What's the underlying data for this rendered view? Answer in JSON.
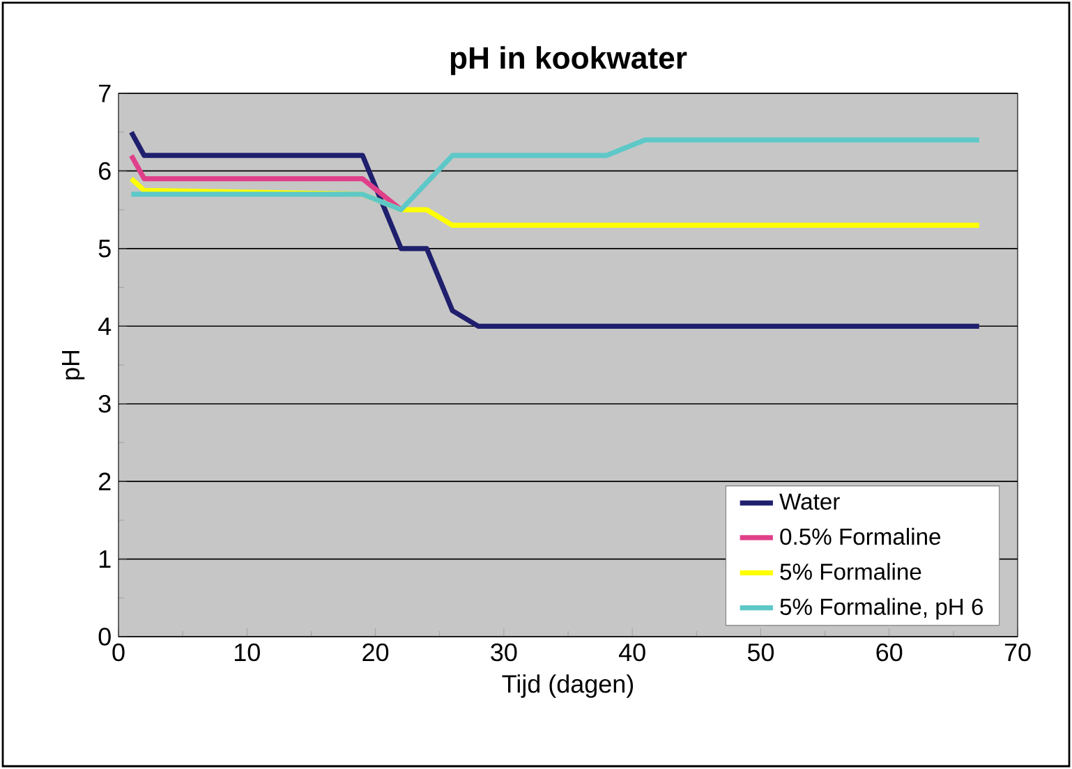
{
  "chart_data": {
    "type": "line",
    "title": "pH in kookwater",
    "xlabel": "Tijd (dagen)",
    "ylabel": "pH",
    "xlim": [
      0,
      70
    ],
    "xticks": [
      0,
      10,
      20,
      30,
      40,
      50,
      60,
      70
    ],
    "ylim": [
      0,
      7
    ],
    "yticks": [
      0,
      1,
      2,
      3,
      4,
      5,
      6,
      7
    ],
    "grid": "y",
    "legend": "bottom right",
    "marker": "none",
    "line_style": "solid",
    "series": [
      {
        "name": "Water",
        "color": "#1f1f6e",
        "x": [
          1,
          2,
          19,
          22,
          24,
          26,
          28,
          67
        ],
        "values": [
          6.5,
          6.2,
          6.2,
          5.0,
          5.0,
          4.2,
          4.0,
          4.0
        ]
      },
      {
        "name": "0.5% Formaline",
        "color": "#e0408a",
        "x": [
          1,
          2,
          19,
          22
        ],
        "values": [
          6.2,
          5.9,
          5.9,
          5.5
        ]
      },
      {
        "name": "5% Formaline",
        "color": "#ffff00",
        "x": [
          1,
          2,
          19,
          22,
          24,
          26,
          67
        ],
        "values": [
          5.9,
          5.75,
          5.7,
          5.5,
          5.5,
          5.3,
          5.3
        ]
      },
      {
        "name": "5% Formaline, pH 6",
        "color": "#5ec8c8",
        "x": [
          1,
          19,
          22,
          26,
          38,
          41,
          67
        ],
        "values": [
          5.7,
          5.7,
          5.5,
          6.2,
          6.2,
          6.4,
          6.4
        ]
      }
    ]
  }
}
